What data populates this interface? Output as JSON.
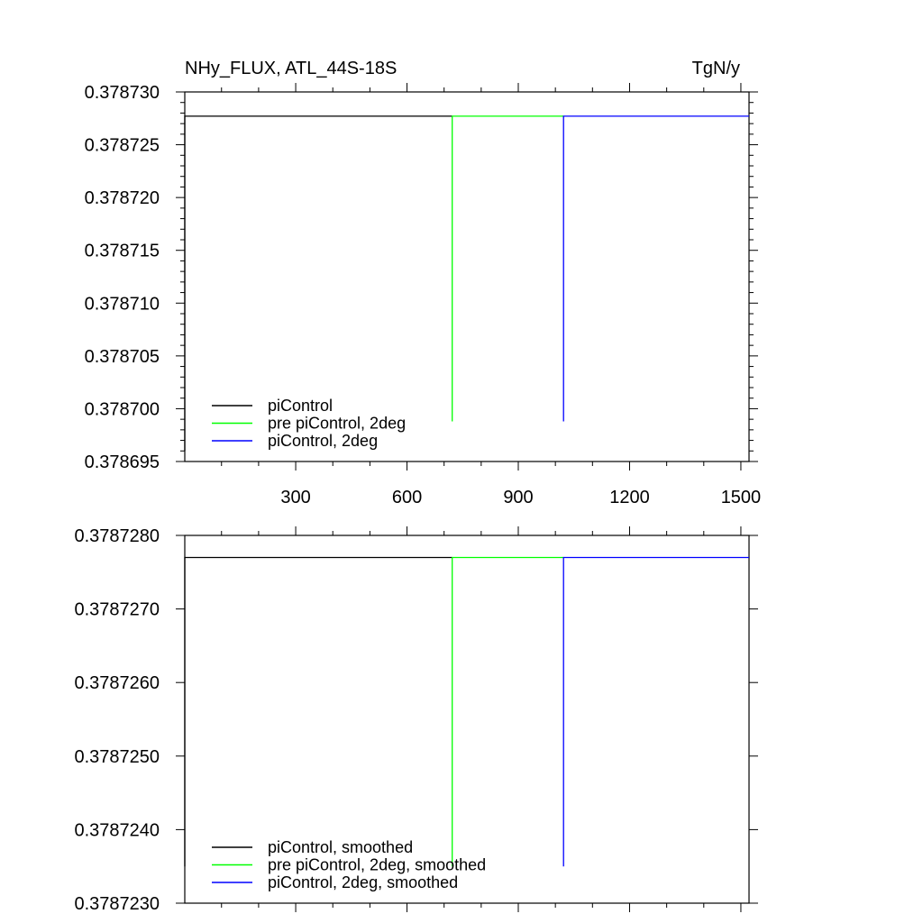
{
  "chart_data": [
    {
      "type": "line",
      "title": "NHy_FLUX, ATL_44S-18S",
      "units": "TgN/y",
      "xlim": [
        1,
        1522
      ],
      "ylim": [
        0.378695,
        0.37873
      ],
      "x_ticks": [
        300,
        600,
        900,
        1200,
        1500
      ],
      "x_tick_labels": [
        "300",
        "600",
        "900",
        "1200",
        "1500"
      ],
      "y_ticks": [
        0.378695,
        0.3787,
        0.378705,
        0.37871,
        0.378715,
        0.37872,
        0.378725,
        0.37873
      ],
      "y_tick_labels": [
        "0.378695",
        "0.378700",
        "0.378705",
        "0.378710",
        "0.378715",
        "0.378720",
        "0.378725",
        "0.378730"
      ],
      "series": [
        {
          "name": "piControl",
          "color": "#000000",
          "x": [
            1,
            1,
            722
          ],
          "y": [
            0.378696,
            0.3787277,
            0.3787277
          ]
        },
        {
          "name": "pre piControl, 2deg",
          "color": "#00ff00",
          "x": [
            722,
            722,
            1022
          ],
          "y": [
            0.3786988,
            0.3787277,
            0.3787277
          ]
        },
        {
          "name": "piControl, 2deg",
          "color": "#0000ff",
          "x": [
            1022,
            1022,
            1522
          ],
          "y": [
            0.3786988,
            0.3787277,
            0.3787277
          ]
        }
      ],
      "legend_position": "bottom-left",
      "grid": false
    },
    {
      "type": "line",
      "xlim": [
        1,
        1522
      ],
      "ylim": [
        0.378723,
        0.378728
      ],
      "x_ticks": [
        300,
        600,
        900,
        1200,
        1500
      ],
      "y_ticks": [
        0.378723,
        0.378724,
        0.378725,
        0.378726,
        0.378727,
        0.378728
      ],
      "y_tick_labels": [
        "0.3787230",
        "0.3787240",
        "0.3787250",
        "0.3787260",
        "0.3787270",
        "0.3787280"
      ],
      "series": [
        {
          "name": "piControl, smoothed",
          "color": "#000000",
          "x": [
            1,
            1,
            722
          ],
          "y": [
            0.3787235,
            0.3787277,
            0.3787277
          ]
        },
        {
          "name": "pre piControl, 2deg, smoothed",
          "color": "#00ff00",
          "x": [
            722,
            722,
            1022
          ],
          "y": [
            0.3787235,
            0.3787277,
            0.3787277
          ]
        },
        {
          "name": "piControl, 2deg, smoothed",
          "color": "#0000ff",
          "x": [
            1022,
            1022,
            1522
          ],
          "y": [
            0.3787235,
            0.3787277,
            0.3787277
          ]
        }
      ],
      "legend_position": "bottom-left",
      "grid": false
    }
  ]
}
